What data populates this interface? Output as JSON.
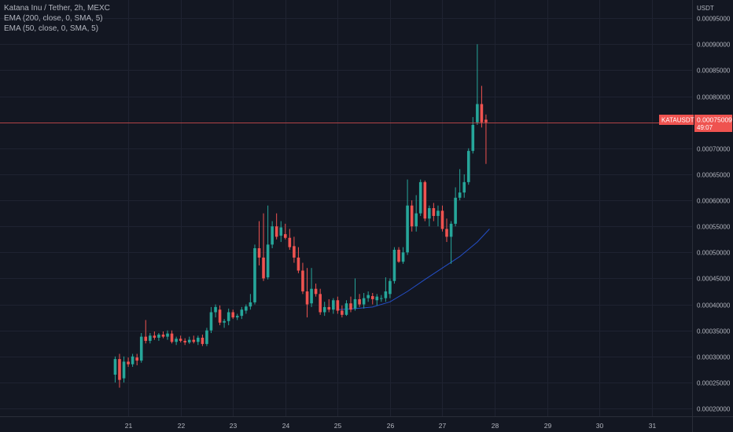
{
  "header": {
    "title": "Katana Inu / Tether, 2h, MEXC",
    "indicators": [
      "EMA (200, close, 0, SMA, 5)",
      "EMA (50, close, 0, SMA, 5)"
    ]
  },
  "price_axis": {
    "unit": "USDT"
  },
  "last_price": {
    "symbol": "KATAUSDT",
    "value": "0.00075009",
    "countdown": "49:07",
    "price": 0.00075009
  },
  "colors": {
    "background": "#131722",
    "grid": "#1f2331",
    "up": "#26a69a",
    "down": "#ef5350",
    "ema_line": "#2962ff",
    "axis_text": "#b2b5be",
    "price_line": "#ef5350"
  },
  "chart_data": {
    "type": "candlestick",
    "y_ticks": [
      "0.00020000",
      "0.00025000",
      "0.00030000",
      "0.00035000",
      "0.00040000",
      "0.00045000",
      "0.00050000",
      "0.00055000",
      "0.00060000",
      "0.00065000",
      "0.00070000",
      "0.00075000",
      "0.00080000",
      "0.00085000",
      "0.00090000",
      "0.00095000"
    ],
    "y_tick_values": [
      0.0002,
      0.00025,
      0.0003,
      0.00035,
      0.0004,
      0.00045,
      0.0005,
      0.00055,
      0.0006,
      0.00065,
      0.0007,
      0.00075,
      0.0008,
      0.00085,
      0.0009,
      0.00095
    ],
    "ylim": [
      0.000185,
      0.000985
    ],
    "x_ticks": [
      "21",
      "22",
      "23",
      "24",
      "25",
      "26",
      "27",
      "28",
      "29",
      "30",
      "31"
    ],
    "x_tick_days": [
      21,
      22,
      23,
      24,
      25,
      26,
      27,
      28,
      29,
      30,
      31
    ],
    "xlim": [
      18.55,
      31.77
    ],
    "candles": [
      {
        "t": 20.75,
        "o": 0.000265,
        "h": 0.0003,
        "l": 0.00025,
        "c": 0.000295
      },
      {
        "t": 20.833,
        "o": 0.000295,
        "h": 0.000305,
        "l": 0.00024,
        "c": 0.000255
      },
      {
        "t": 20.917,
        "o": 0.000258,
        "h": 0.0003,
        "l": 0.00025,
        "c": 0.00029
      },
      {
        "t": 21.0,
        "o": 0.00029,
        "h": 0.000298,
        "l": 0.00028,
        "c": 0.000285
      },
      {
        "t": 21.083,
        "o": 0.000285,
        "h": 0.000305,
        "l": 0.00028,
        "c": 0.0003
      },
      {
        "t": 21.167,
        "o": 0.000298,
        "h": 0.000305,
        "l": 0.000283,
        "c": 0.000292
      },
      {
        "t": 21.25,
        "o": 0.000292,
        "h": 0.000345,
        "l": 0.000288,
        "c": 0.000338
      },
      {
        "t": 21.333,
        "o": 0.000338,
        "h": 0.00037,
        "l": 0.000325,
        "c": 0.00033
      },
      {
        "t": 21.417,
        "o": 0.00033,
        "h": 0.000345,
        "l": 0.000325,
        "c": 0.00034
      },
      {
        "t": 21.5,
        "o": 0.00034,
        "h": 0.000348,
        "l": 0.000332,
        "c": 0.000336
      },
      {
        "t": 21.583,
        "o": 0.000336,
        "h": 0.000345,
        "l": 0.00033,
        "c": 0.000342
      },
      {
        "t": 21.667,
        "o": 0.000342,
        "h": 0.000348,
        "l": 0.000335,
        "c": 0.000338
      },
      {
        "t": 21.75,
        "o": 0.000338,
        "h": 0.00035,
        "l": 0.000332,
        "c": 0.000344
      },
      {
        "t": 21.833,
        "o": 0.000344,
        "h": 0.00035,
        "l": 0.000325,
        "c": 0.000328
      },
      {
        "t": 21.917,
        "o": 0.000328,
        "h": 0.000338,
        "l": 0.000322,
        "c": 0.000334
      },
      {
        "t": 22.0,
        "o": 0.000334,
        "h": 0.00034,
        "l": 0.000327,
        "c": 0.00033
      },
      {
        "t": 22.083,
        "o": 0.00033,
        "h": 0.000335,
        "l": 0.000322,
        "c": 0.000327
      },
      {
        "t": 22.167,
        "o": 0.000327,
        "h": 0.000338,
        "l": 0.000324,
        "c": 0.000332
      },
      {
        "t": 22.25,
        "o": 0.000332,
        "h": 0.00034,
        "l": 0.000325,
        "c": 0.000328
      },
      {
        "t": 22.333,
        "o": 0.000328,
        "h": 0.00034,
        "l": 0.000322,
        "c": 0.000336
      },
      {
        "t": 22.417,
        "o": 0.000336,
        "h": 0.000342,
        "l": 0.00032,
        "c": 0.000324
      },
      {
        "t": 22.5,
        "o": 0.000324,
        "h": 0.000355,
        "l": 0.00032,
        "c": 0.00035
      },
      {
        "t": 22.583,
        "o": 0.00035,
        "h": 0.000395,
        "l": 0.000345,
        "c": 0.000385
      },
      {
        "t": 22.667,
        "o": 0.000385,
        "h": 0.0004,
        "l": 0.000375,
        "c": 0.000395
      },
      {
        "t": 22.75,
        "o": 0.00039,
        "h": 0.000398,
        "l": 0.00036,
        "c": 0.000365
      },
      {
        "t": 22.833,
        "o": 0.000365,
        "h": 0.000372,
        "l": 0.000355,
        "c": 0.000368
      },
      {
        "t": 22.917,
        "o": 0.000368,
        "h": 0.000392,
        "l": 0.00036,
        "c": 0.000385
      },
      {
        "t": 23.0,
        "o": 0.000385,
        "h": 0.00039,
        "l": 0.000372,
        "c": 0.000375
      },
      {
        "t": 23.083,
        "o": 0.000375,
        "h": 0.000382,
        "l": 0.00037,
        "c": 0.000378
      },
      {
        "t": 23.167,
        "o": 0.000378,
        "h": 0.000395,
        "l": 0.000372,
        "c": 0.00039
      },
      {
        "t": 23.25,
        "o": 0.000388,
        "h": 0.0004,
        "l": 0.000382,
        "c": 0.000396
      },
      {
        "t": 23.333,
        "o": 0.000396,
        "h": 0.00042,
        "l": 0.00039,
        "c": 0.000404
      },
      {
        "t": 23.417,
        "o": 0.000404,
        "h": 0.000515,
        "l": 0.0004,
        "c": 0.000508
      },
      {
        "t": 23.5,
        "o": 0.000508,
        "h": 0.00056,
        "l": 0.000475,
        "c": 0.00049
      },
      {
        "t": 23.583,
        "o": 0.00049,
        "h": 0.000575,
        "l": 0.000445,
        "c": 0.00045
      },
      {
        "t": 23.667,
        "o": 0.000452,
        "h": 0.00059,
        "l": 0.000448,
        "c": 0.000515
      },
      {
        "t": 23.75,
        "o": 0.000515,
        "h": 0.00056,
        "l": 0.000508,
        "c": 0.00055
      },
      {
        "t": 23.833,
        "o": 0.00055,
        "h": 0.000575,
        "l": 0.000525,
        "c": 0.00053
      },
      {
        "t": 23.917,
        "o": 0.000532,
        "h": 0.00056,
        "l": 0.00052,
        "c": 0.000548
      },
      {
        "t": 24.0,
        "o": 0.000535,
        "h": 0.000555,
        "l": 0.000525,
        "c": 0.000528
      },
      {
        "t": 24.083,
        "o": 0.000528,
        "h": 0.000545,
        "l": 0.000505,
        "c": 0.00051
      },
      {
        "t": 24.167,
        "o": 0.000512,
        "h": 0.00053,
        "l": 0.00048,
        "c": 0.00049
      },
      {
        "t": 24.25,
        "o": 0.00049,
        "h": 0.00051,
        "l": 0.00046,
        "c": 0.000465
      },
      {
        "t": 24.333,
        "o": 0.000465,
        "h": 0.00048,
        "l": 0.00042,
        "c": 0.000425
      },
      {
        "t": 24.417,
        "o": 0.000425,
        "h": 0.00047,
        "l": 0.000375,
        "c": 0.0004
      },
      {
        "t": 24.5,
        "o": 0.000402,
        "h": 0.00047,
        "l": 0.000395,
        "c": 0.00043
      },
      {
        "t": 24.583,
        "o": 0.00043,
        "h": 0.00044,
        "l": 0.000415,
        "c": 0.00042
      },
      {
        "t": 24.667,
        "o": 0.00042,
        "h": 0.00043,
        "l": 0.00038,
        "c": 0.000385
      },
      {
        "t": 24.75,
        "o": 0.000385,
        "h": 0.000405,
        "l": 0.000378,
        "c": 0.000395
      },
      {
        "t": 24.833,
        "o": 0.000395,
        "h": 0.00041,
        "l": 0.000385,
        "c": 0.00039
      },
      {
        "t": 24.917,
        "o": 0.00039,
        "h": 0.000412,
        "l": 0.000382,
        "c": 0.000408
      },
      {
        "t": 25.0,
        "o": 0.000408,
        "h": 0.000415,
        "l": 0.000382,
        "c": 0.000388
      },
      {
        "t": 25.083,
        "o": 0.000388,
        "h": 0.000398,
        "l": 0.000375,
        "c": 0.00038
      },
      {
        "t": 25.167,
        "o": 0.00038,
        "h": 0.000408,
        "l": 0.000378,
        "c": 0.000402
      },
      {
        "t": 25.25,
        "o": 0.000402,
        "h": 0.000415,
        "l": 0.000385,
        "c": 0.00039
      },
      {
        "t": 25.333,
        "o": 0.000392,
        "h": 0.00045,
        "l": 0.000388,
        "c": 0.00041
      },
      {
        "t": 25.417,
        "o": 0.00041,
        "h": 0.00042,
        "l": 0.000395,
        "c": 0.0004
      },
      {
        "t": 25.5,
        "o": 0.0004,
        "h": 0.000422,
        "l": 0.000392,
        "c": 0.000412
      },
      {
        "t": 25.583,
        "o": 0.000412,
        "h": 0.000425,
        "l": 0.000405,
        "c": 0.000418
      },
      {
        "t": 25.667,
        "o": 0.000416,
        "h": 0.000422,
        "l": 0.0004,
        "c": 0.00041
      },
      {
        "t": 25.75,
        "o": 0.000408,
        "h": 0.00042,
        "l": 0.000398,
        "c": 0.000415
      },
      {
        "t": 25.833,
        "o": 0.000412,
        "h": 0.000418,
        "l": 0.000405,
        "c": 0.000412
      },
      {
        "t": 25.917,
        "o": 0.000412,
        "h": 0.000452,
        "l": 0.000405,
        "c": 0.000425
      },
      {
        "t": 26.0,
        "o": 0.00042,
        "h": 0.00045,
        "l": 0.000412,
        "c": 0.000445
      },
      {
        "t": 26.083,
        "o": 0.000445,
        "h": 0.00051,
        "l": 0.00044,
        "c": 0.000505
      },
      {
        "t": 26.167,
        "o": 0.000505,
        "h": 0.00051,
        "l": 0.00048,
        "c": 0.000482
      },
      {
        "t": 26.25,
        "o": 0.000482,
        "h": 0.00051,
        "l": 0.000478,
        "c": 0.0005
      },
      {
        "t": 26.333,
        "o": 0.0005,
        "h": 0.00064,
        "l": 0.000495,
        "c": 0.00059
      },
      {
        "t": 26.417,
        "o": 0.00059,
        "h": 0.0006,
        "l": 0.00054,
        "c": 0.00055
      },
      {
        "t": 26.5,
        "o": 0.00055,
        "h": 0.00061,
        "l": 0.00054,
        "c": 0.000575
      },
      {
        "t": 26.583,
        "o": 0.000575,
        "h": 0.00064,
        "l": 0.00057,
        "c": 0.000635
      },
      {
        "t": 26.667,
        "o": 0.000635,
        "h": 0.000638,
        "l": 0.00056,
        "c": 0.000565
      },
      {
        "t": 26.75,
        "o": 0.000565,
        "h": 0.00059,
        "l": 0.00055,
        "c": 0.000585
      },
      {
        "t": 26.833,
        "o": 0.000585,
        "h": 0.000595,
        "l": 0.00056,
        "c": 0.00057
      },
      {
        "t": 26.917,
        "o": 0.00057,
        "h": 0.00059,
        "l": 0.00055,
        "c": 0.00058
      },
      {
        "t": 27.0,
        "o": 0.00058,
        "h": 0.00059,
        "l": 0.00054,
        "c": 0.000545
      },
      {
        "t": 27.083,
        "o": 0.000545,
        "h": 0.000565,
        "l": 0.00052,
        "c": 0.00053
      },
      {
        "t": 27.167,
        "o": 0.00053,
        "h": 0.00056,
        "l": 0.000478,
        "c": 0.000555
      },
      {
        "t": 27.25,
        "o": 0.000555,
        "h": 0.000625,
        "l": 0.00055,
        "c": 0.000605
      },
      {
        "t": 27.333,
        "o": 0.000605,
        "h": 0.00066,
        "l": 0.0006,
        "c": 0.000615
      },
      {
        "t": 27.417,
        "o": 0.000615,
        "h": 0.00065,
        "l": 0.000605,
        "c": 0.000635
      },
      {
        "t": 27.5,
        "o": 0.000635,
        "h": 0.0007,
        "l": 0.00063,
        "c": 0.000695
      },
      {
        "t": 27.583,
        "o": 0.000695,
        "h": 0.00076,
        "l": 0.00069,
        "c": 0.000745
      },
      {
        "t": 27.667,
        "o": 0.00075,
        "h": 0.0009,
        "l": 0.000745,
        "c": 0.000785
      },
      {
        "t": 27.75,
        "o": 0.000785,
        "h": 0.00082,
        "l": 0.00074,
        "c": 0.00075
      },
      {
        "t": 27.833,
        "o": 0.000755,
        "h": 0.000765,
        "l": 0.00067,
        "c": 0.00075
      }
    ],
    "ema_50": {
      "t": [
        25.0,
        25.333,
        25.667,
        26.0,
        26.333,
        26.667,
        27.0,
        27.333,
        27.667,
        27.9
      ],
      "v": [
        0.00039,
        0.000392,
        0.000395,
        0.000405,
        0.000425,
        0.000448,
        0.00047,
        0.000492,
        0.00052,
        0.000545
      ]
    }
  }
}
